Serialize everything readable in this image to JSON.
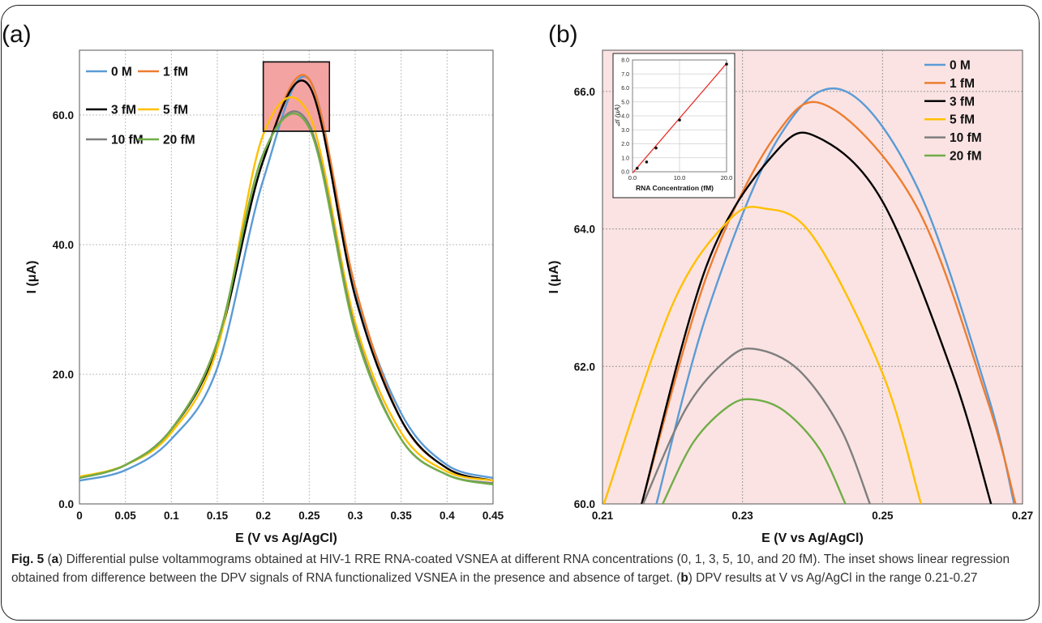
{
  "chart_data": [
    {
      "panel_label": "(a)",
      "type": "line",
      "xlabel": "E (V vs Ag/AgCl)",
      "ylabel": "I (μA)",
      "xlim": [
        0,
        0.45
      ],
      "ylim": [
        0,
        70
      ],
      "xticks": [
        "0",
        "0.05",
        "0.1",
        "0.15",
        "0.2",
        "0.25",
        "0.3",
        "0.35",
        "0.4",
        "0.45"
      ],
      "yticks": [
        "0.0",
        "20.0",
        "40.0",
        "60.0"
      ],
      "grid": true,
      "legend_position": "top-left",
      "highlight_box": {
        "x": [
          0.2,
          0.272
        ],
        "y": [
          57.5,
          68.2
        ],
        "color": "#f4a3a3"
      },
      "series": [
        {
          "name": "0 M",
          "color": "#5b9bd5",
          "x": [
            0,
            0.05,
            0.1,
            0.15,
            0.2,
            0.25,
            0.3,
            0.35,
            0.4,
            0.45
          ],
          "y": [
            3.6,
            5.2,
            10.0,
            21.0,
            50.0,
            65.5,
            33.0,
            14.0,
            6.0,
            4.0
          ]
        },
        {
          "name": "1 fM",
          "color": "#ed7d31",
          "x": [
            0,
            0.05,
            0.1,
            0.15,
            0.2,
            0.25,
            0.3,
            0.35,
            0.4,
            0.45
          ],
          "y": [
            4.0,
            6.0,
            11.5,
            25.0,
            53.0,
            65.5,
            33.5,
            13.0,
            5.5,
            3.6
          ]
        },
        {
          "name": "3 fM",
          "color": "#000000",
          "x": [
            0,
            0.05,
            0.1,
            0.15,
            0.2,
            0.25,
            0.3,
            0.35,
            0.4,
            0.45
          ],
          "y": [
            4.0,
            6.0,
            11.5,
            24.5,
            53.0,
            64.5,
            32.0,
            13.0,
            5.5,
            3.6
          ]
        },
        {
          "name": "5 fM",
          "color": "#ffc000",
          "x": [
            0,
            0.05,
            0.1,
            0.15,
            0.2,
            0.25,
            0.3,
            0.35,
            0.4,
            0.45
          ],
          "y": [
            4.2,
            6.0,
            11.0,
            24.0,
            57.0,
            60.0,
            28.0,
            11.0,
            5.0,
            3.6
          ]
        },
        {
          "name": "10 fM",
          "color": "#7f7f7f",
          "x": [
            0,
            0.05,
            0.1,
            0.15,
            0.2,
            0.25,
            0.3,
            0.35,
            0.4,
            0.45
          ],
          "y": [
            4.0,
            6.0,
            11.5,
            25.0,
            54.0,
            58.5,
            27.0,
            10.0,
            4.5,
            3.2
          ]
        },
        {
          "name": "20 fM",
          "color": "#70ad47",
          "x": [
            0,
            0.05,
            0.1,
            0.15,
            0.2,
            0.25,
            0.3,
            0.35,
            0.4,
            0.45
          ],
          "y": [
            4.0,
            6.0,
            11.5,
            25.0,
            54.0,
            58.0,
            26.5,
            10.0,
            4.5,
            3.0
          ]
        }
      ]
    },
    {
      "panel_label": "(b)",
      "type": "line",
      "xlabel": "E (V vs Ag/AgCl)",
      "ylabel": "I (μA)",
      "xlim": [
        0.21,
        0.27
      ],
      "ylim": [
        60,
        66.6
      ],
      "xticks": [
        "0.21",
        "0.23",
        "0.25",
        "0.27"
      ],
      "yticks": [
        "60.0",
        "62.0",
        "64.0",
        "66.0"
      ],
      "grid": true,
      "background": "#fbe3e3",
      "legend_position": "top-right",
      "series": [
        {
          "name": "0 M",
          "color": "#5b9bd5",
          "x": [
            0.2177,
            0.225,
            0.235,
            0.2443,
            0.255,
            0.265,
            0.2688
          ],
          "y": [
            60.0,
            62.8,
            65.3,
            66.02,
            64.6,
            61.6,
            60.0
          ]
        },
        {
          "name": "1 fM",
          "color": "#ed7d31",
          "x": [
            0.2156,
            0.225,
            0.235,
            0.2425,
            0.255,
            0.265,
            0.269
          ],
          "y": [
            60.0,
            63.35,
            65.4,
            65.77,
            64.3,
            61.5,
            60.0
          ]
        },
        {
          "name": "3 fM",
          "color": "#000000",
          "x": [
            0.2156,
            0.225,
            0.235,
            0.241,
            0.25,
            0.26,
            0.2655
          ],
          "y": [
            60.0,
            63.5,
            65.15,
            65.32,
            64.4,
            61.9,
            60.0
          ]
        },
        {
          "name": "5 fM",
          "color": "#ffc000",
          "x": [
            0.2102,
            0.22,
            0.228,
            0.233,
            0.24,
            0.25,
            0.2555
          ],
          "y": [
            60.0,
            62.9,
            64.12,
            64.3,
            63.9,
            61.9,
            60.0
          ]
        },
        {
          "name": "10 fM",
          "color": "#7f7f7f",
          "x": [
            0.2158,
            0.222,
            0.228,
            0.232,
            0.238,
            0.244,
            0.2482
          ],
          "y": [
            60.0,
            61.4,
            62.12,
            62.25,
            61.95,
            61.1,
            60.0
          ]
        },
        {
          "name": "20 fM",
          "color": "#70ad47",
          "x": [
            0.2186,
            0.223,
            0.228,
            0.2315,
            0.236,
            0.241,
            0.2447
          ],
          "y": [
            60.0,
            60.9,
            61.42,
            61.52,
            61.35,
            60.8,
            60.0
          ]
        }
      ],
      "inset": {
        "type": "scatter",
        "xlabel": "RNA Concentration (fM)",
        "ylabel": "⊿I (μA)",
        "xlim": [
          0,
          20
        ],
        "ylim": [
          0,
          8
        ],
        "xticks": [
          "0.0",
          "10.0",
          "20.0"
        ],
        "yticks": [
          "0.0",
          "1.0",
          "2.0",
          "3.0",
          "4.0",
          "5.0",
          "6.0",
          "7.0",
          "8.0"
        ],
        "x": [
          1,
          3,
          5,
          10,
          20
        ],
        "y": [
          0.25,
          0.7,
          1.7,
          3.7,
          7.7
        ],
        "fit_line": {
          "x": [
            0,
            20
          ],
          "y": [
            -0.1,
            7.75
          ],
          "color": "#e8312a"
        }
      }
    }
  ],
  "caption": {
    "fig_label": "Fig. 5",
    "parts": [
      {
        "text": " (",
        "bold": false
      },
      {
        "text": "a",
        "bold": true
      },
      {
        "text": ") Differential pulse voltammograms obtained at HIV-1 RRE RNA-coated VSNEA at different RNA concentrations (0, 1, 3, 5, 10, and 20 fM). The inset shows linear regression obtained from difference between the DPV signals of RNA functionalized VSNEA in the presence and absence of target. (",
        "bold": false
      },
      {
        "text": "b",
        "bold": true
      },
      {
        "text": ") DPV results at V vs Ag/AgCl in the range 0.21-0.27",
        "bold": false
      }
    ]
  }
}
